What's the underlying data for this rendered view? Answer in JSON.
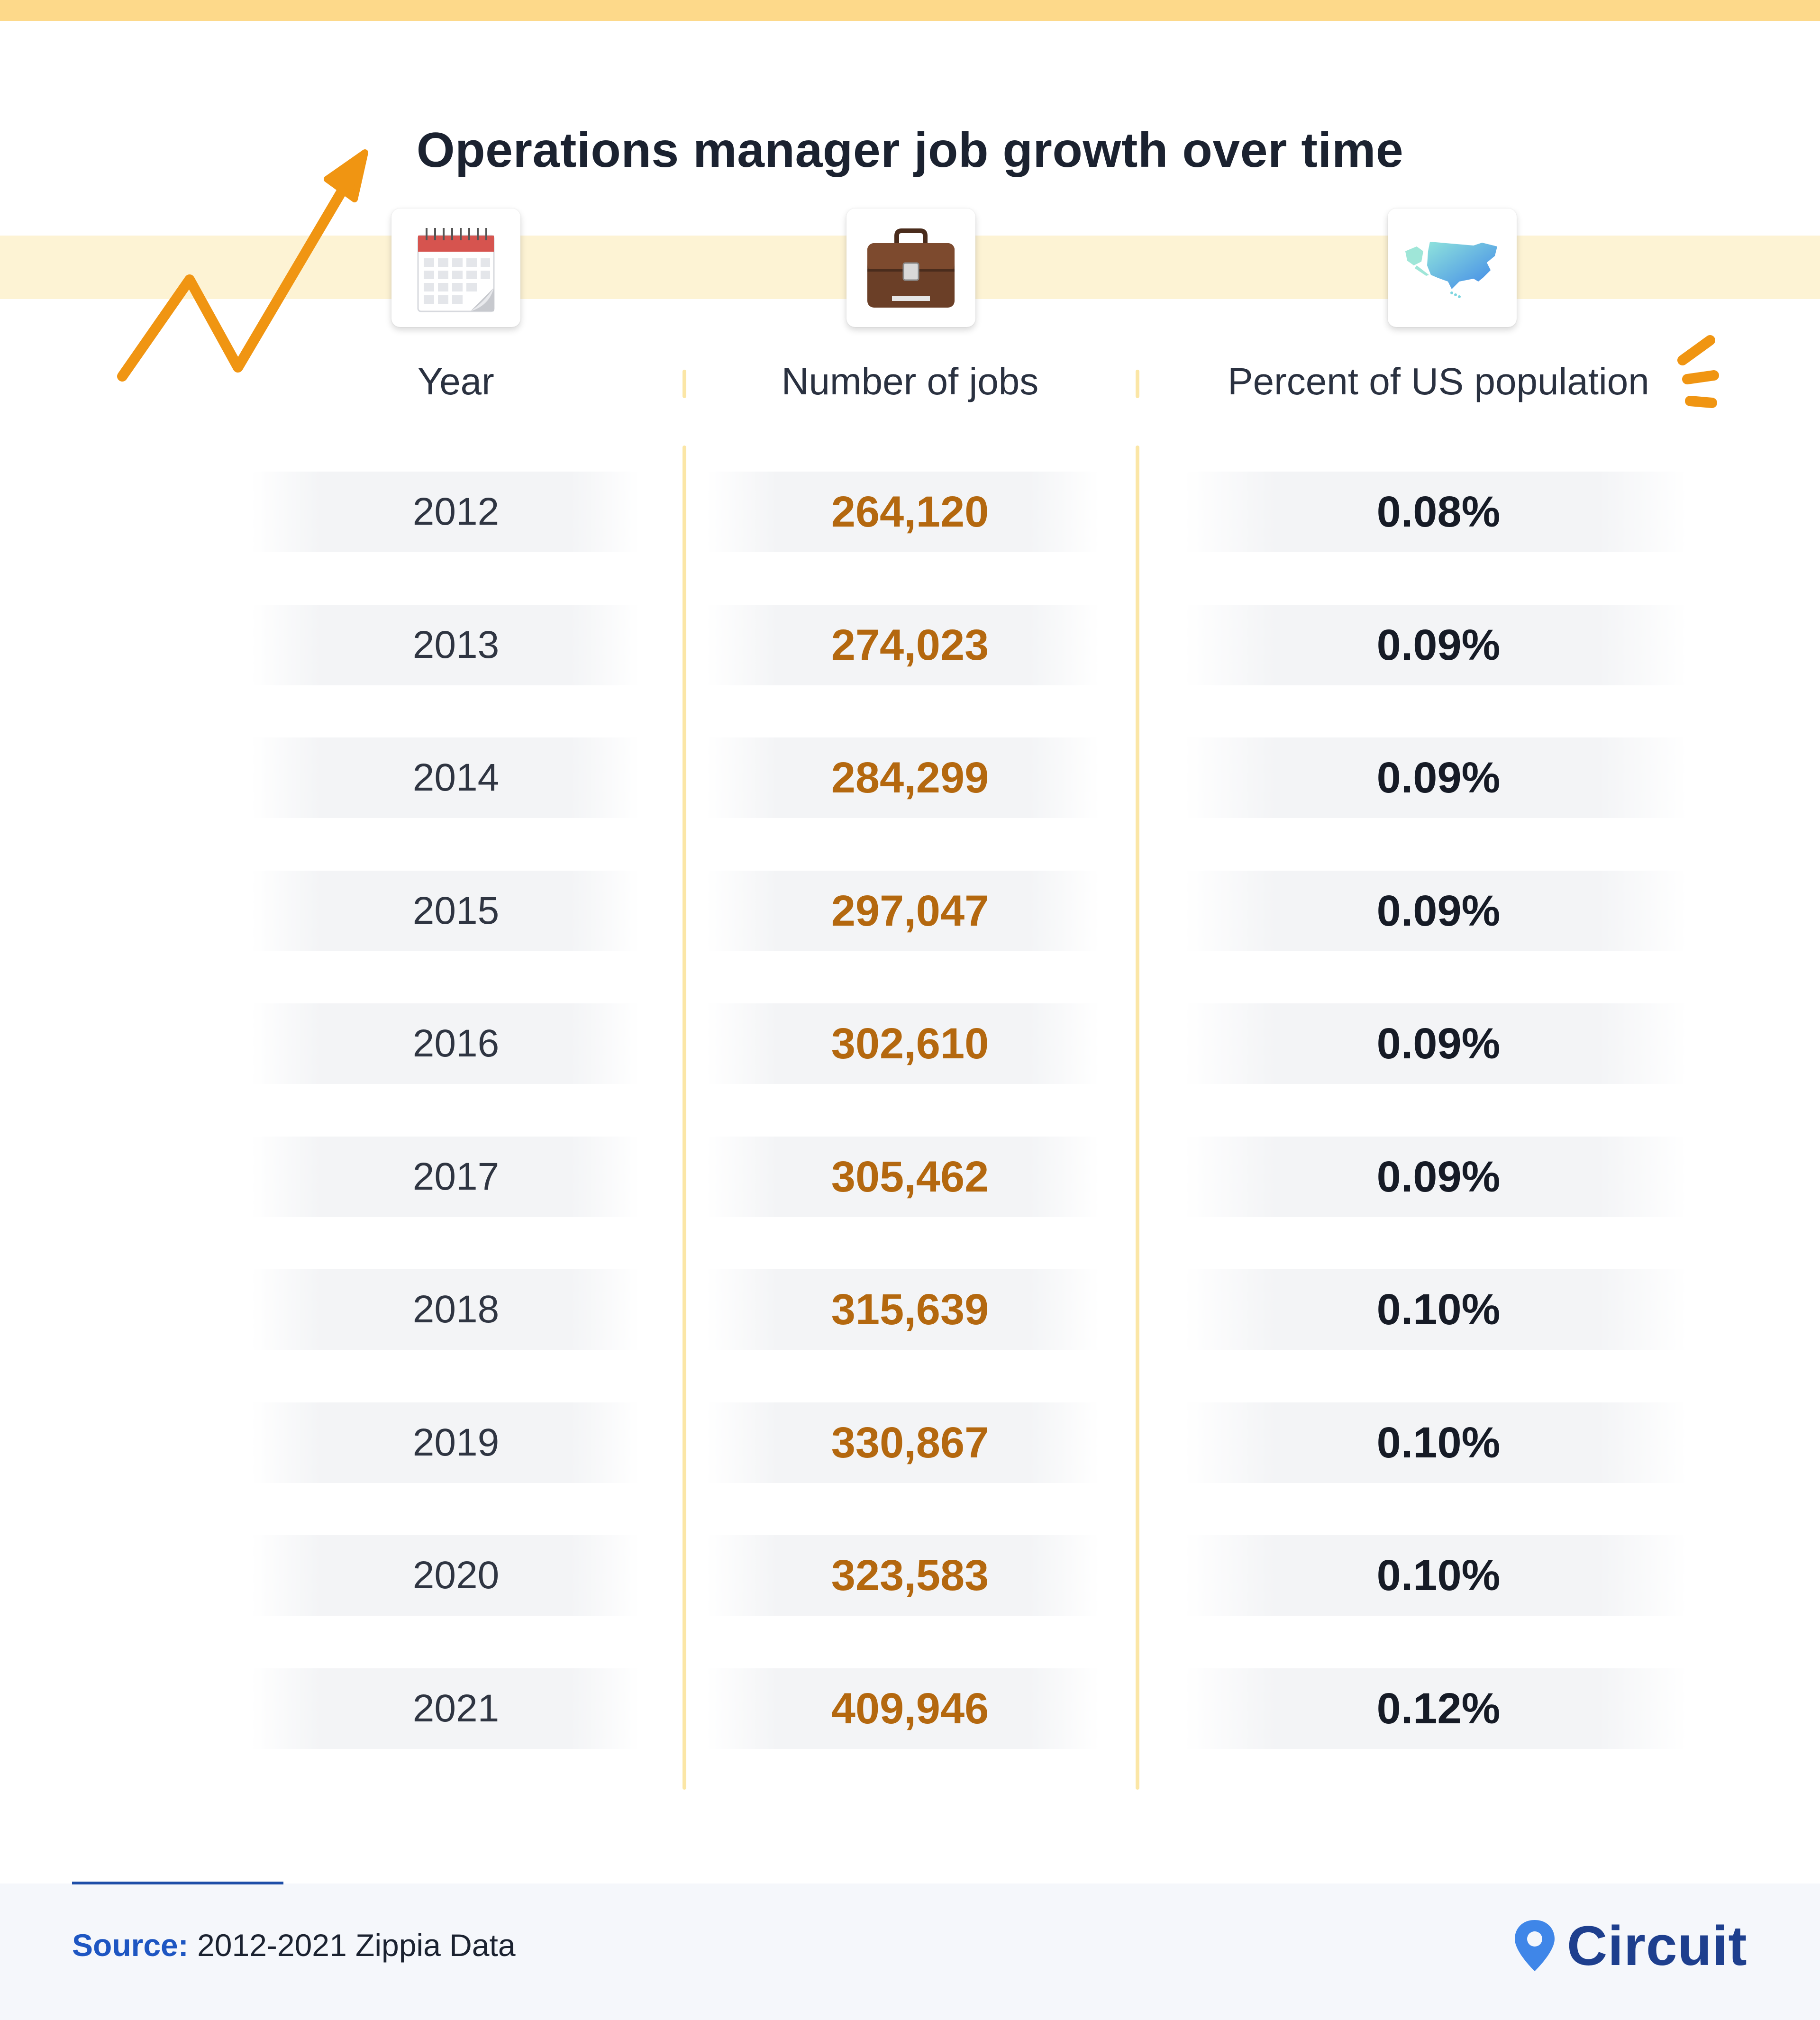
{
  "title": "Operations manager job growth over time",
  "colors": {
    "accent": "#f09512",
    "jobs_text": "#b4680f",
    "band": "#fdf3d4",
    "brand": "#1e3f8e"
  },
  "icons": [
    "calendar-icon",
    "briefcase-icon",
    "us-map-icon",
    "growth-arrow-icon",
    "sparkle-icon",
    "map-pin-icon"
  ],
  "headers": {
    "year": "Year",
    "jobs": "Number of jobs",
    "percent": "Percent of US population"
  },
  "chart_data": {
    "type": "table",
    "title": "Operations manager job growth over time",
    "columns": [
      "Year",
      "Number of jobs",
      "Percent of US population"
    ],
    "rows": [
      {
        "year": "2012",
        "jobs": "264,120",
        "percent": "0.08%"
      },
      {
        "year": "2013",
        "jobs": "274,023",
        "percent": "0.09%"
      },
      {
        "year": "2014",
        "jobs": "284,299",
        "percent": "0.09%"
      },
      {
        "year": "2015",
        "jobs": "297,047",
        "percent": "0.09%"
      },
      {
        "year": "2016",
        "jobs": "302,610",
        "percent": "0.09%"
      },
      {
        "year": "2017",
        "jobs": "305,462",
        "percent": "0.09%"
      },
      {
        "year": "2018",
        "jobs": "315,639",
        "percent": "0.10%"
      },
      {
        "year": "2019",
        "jobs": "330,867",
        "percent": "0.10%"
      },
      {
        "year": "2020",
        "jobs": "323,583",
        "percent": "0.10%"
      },
      {
        "year": "2021",
        "jobs": "409,946",
        "percent": "0.12%"
      }
    ]
  },
  "footer": {
    "source_label": "Source:",
    "source_text": " 2012-2021 Zippia Data",
    "brand": "Circuit"
  }
}
